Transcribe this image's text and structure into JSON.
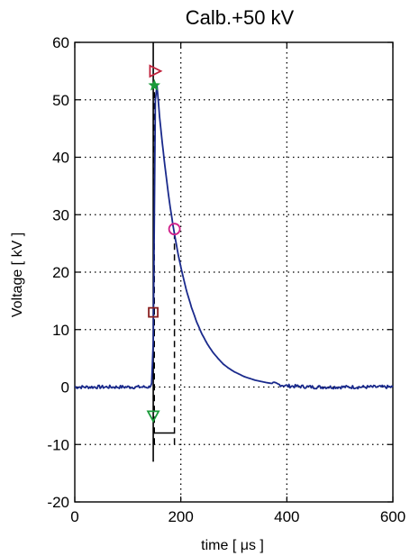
{
  "chart_data": {
    "type": "line",
    "title": "Calb.+50 kV",
    "xlabel": "time [ μs ]",
    "ylabel": "Voltage [ kV ]",
    "xlim": [
      0,
      600
    ],
    "ylim": [
      -20,
      60
    ],
    "xticks": [
      0,
      200,
      400,
      600
    ],
    "yticks": [
      -20,
      -10,
      0,
      10,
      20,
      30,
      40,
      50,
      60
    ],
    "grid": true,
    "grid_style": "dotted",
    "series": [
      {
        "color": "#1a2a8c",
        "x": [
          0,
          20,
          40,
          60,
          80,
          100,
          120,
          140,
          145,
          148,
          150,
          152,
          155,
          160,
          165,
          170,
          175,
          180,
          185,
          190,
          195,
          200,
          210,
          220,
          230,
          240,
          250,
          260,
          270,
          280,
          290,
          300,
          320,
          340,
          360,
          380,
          400,
          450,
          500,
          550,
          600
        ],
        "y": [
          0,
          0,
          0,
          0,
          0,
          0,
          0,
          0,
          0.5,
          8,
          30,
          50,
          52.5,
          47,
          42.5,
          38.5,
          34.7,
          31.3,
          28.3,
          25.6,
          23.1,
          20.9,
          17,
          13.9,
          11.3,
          9.2,
          7.5,
          6.1,
          5,
          4,
          3.3,
          2.7,
          1.8,
          1.2,
          0.8,
          0.5,
          0.2,
          0,
          0,
          0,
          0
        ]
      }
    ],
    "reference_lines": {
      "vertical_solid_x": 148,
      "vertical_solid_y": [
        -13,
        60
      ],
      "vertical_dashed_1_x": 150,
      "vertical_dashed_2_x": 188,
      "vertical_dashed_y": [
        -10,
        52
      ],
      "horizontal_solid_y": -8,
      "horizontal_solid_x": [
        148,
        188
      ],
      "color": "#000000"
    },
    "markers": [
      {
        "shape": "triangle-right",
        "x": 152,
        "y": 55,
        "color": "#c0203a"
      },
      {
        "shape": "star",
        "x": 150,
        "y": 52.5,
        "color": "#1a9a3a"
      },
      {
        "shape": "circle",
        "x": 188,
        "y": 27.5,
        "color": "#d0208a"
      },
      {
        "shape": "square",
        "x": 148,
        "y": 13,
        "color": "#8a2020"
      },
      {
        "shape": "triangle-down",
        "x": 148,
        "y": -5,
        "color": "#1a9a3a"
      }
    ]
  }
}
